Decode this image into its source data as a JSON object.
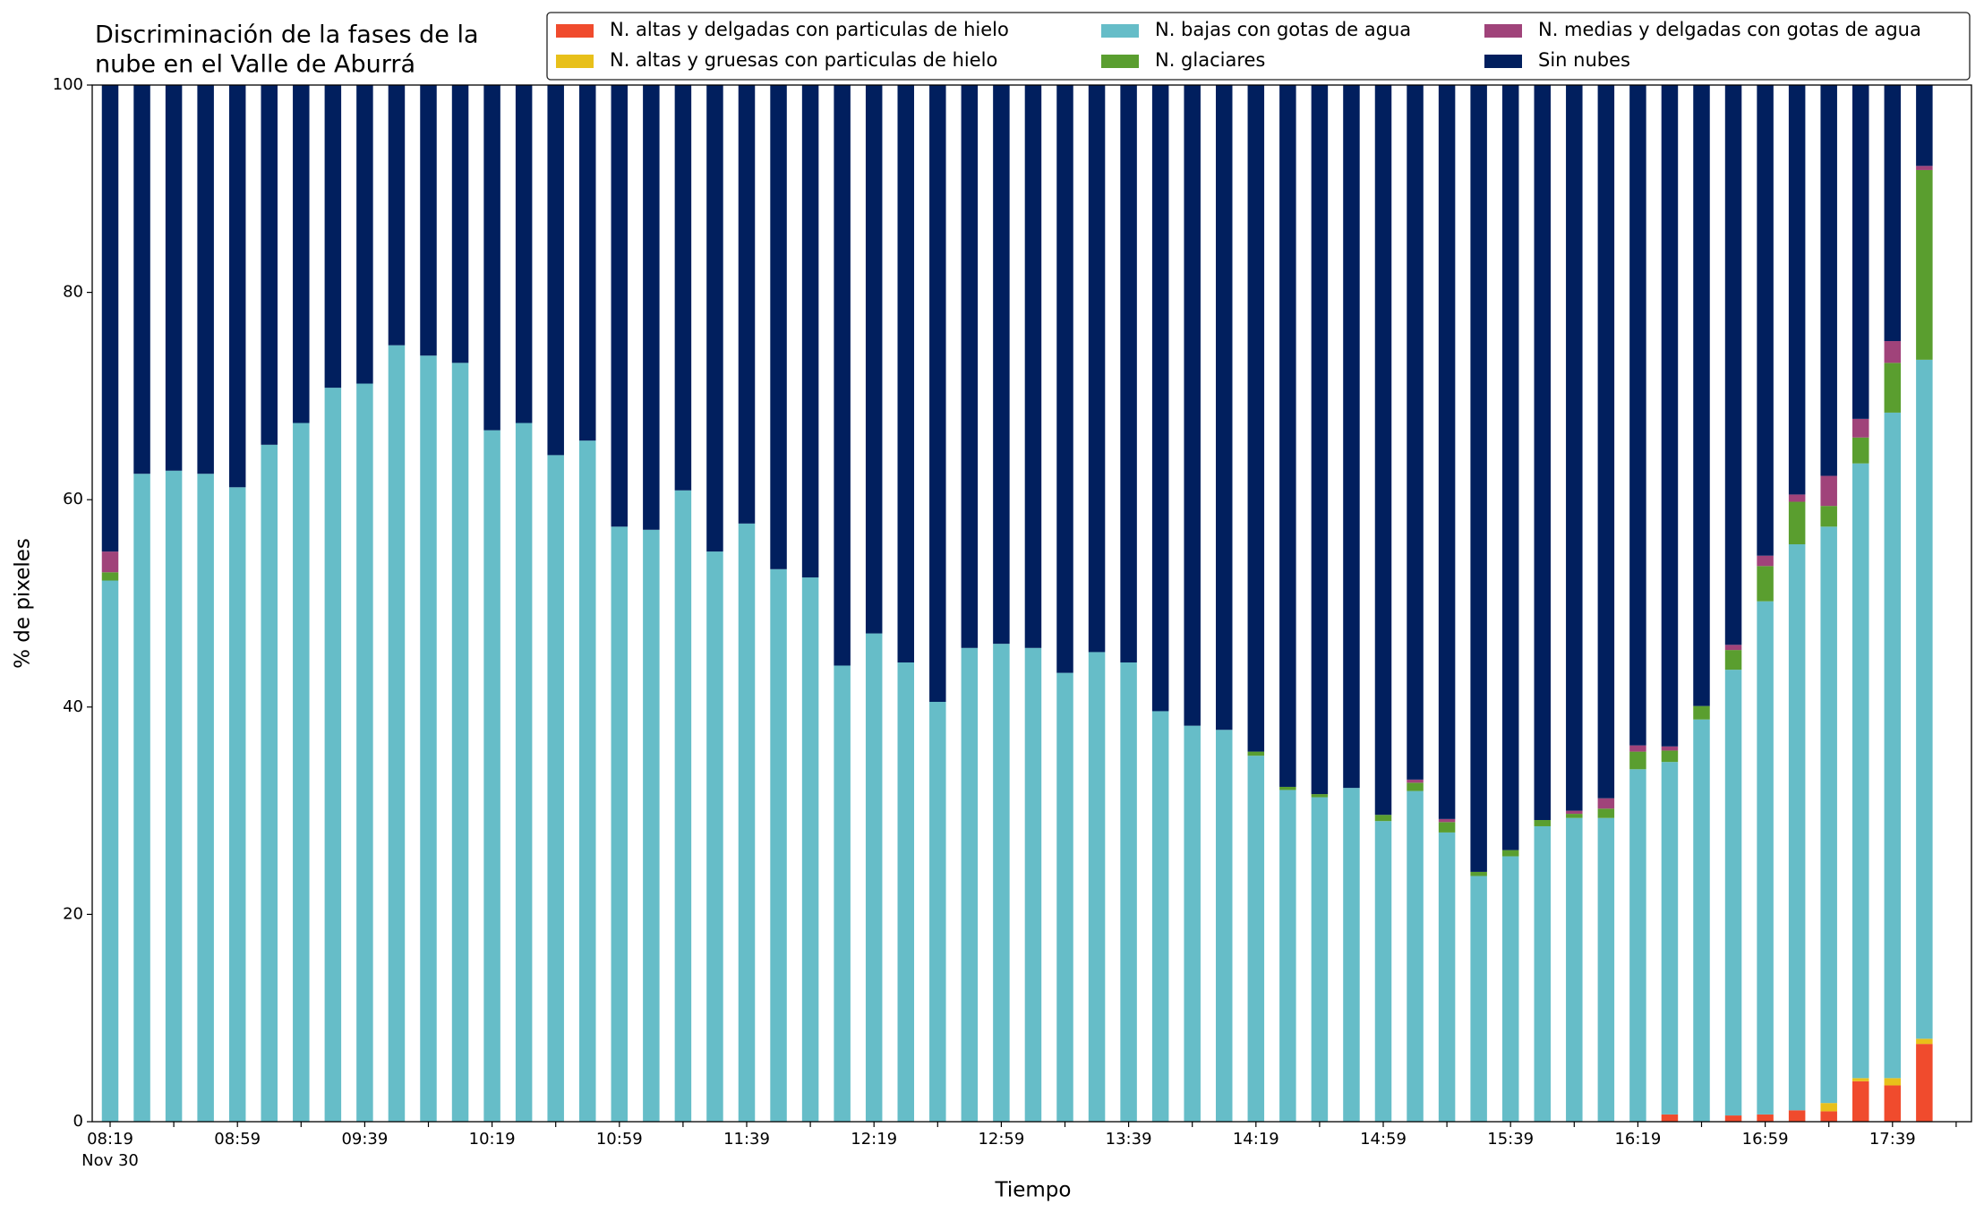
{
  "chart_data": {
    "type": "stacked_bar",
    "title": [
      "Discriminación de la fases de la",
      "nube en el Valle de Aburrá"
    ],
    "xlabel": "Tiempo",
    "ylabel": "% de pixeles",
    "x_date_label": "Nov 30",
    "categories": [
      "08:19",
      null,
      null,
      null,
      "08:59",
      null,
      null,
      null,
      "09:39",
      null,
      null,
      null,
      "10:19",
      null,
      null,
      null,
      "10:59",
      null,
      null,
      null,
      "11:39",
      null,
      null,
      null,
      "12:19",
      null,
      null,
      null,
      "12:59",
      null,
      null,
      null,
      "13:39",
      null,
      null,
      null,
      "14:19",
      null,
      null,
      null,
      "14:59",
      null,
      null,
      null,
      "15:39",
      null,
      null,
      null,
      "16:19",
      null,
      null,
      null,
      "16:59",
      null,
      null,
      null,
      "17:39",
      null
    ],
    "ylim": [
      0,
      100
    ],
    "yticks": [
      0,
      20,
      40,
      60,
      80,
      100
    ],
    "series": [
      {
        "name": "N. altas y delgadas con particulas de hielo",
        "color": "#f04b2d",
        "values": [
          0,
          0,
          0,
          0,
          0,
          0,
          0,
          0,
          0,
          0,
          0,
          0,
          0,
          0,
          0,
          0,
          0,
          0,
          0,
          0,
          0,
          0,
          0,
          0,
          0,
          0,
          0,
          0,
          0,
          0,
          0,
          0,
          0,
          0,
          0,
          0,
          0,
          0,
          0,
          0,
          0,
          0,
          0,
          0,
          0,
          0,
          0,
          0,
          0,
          0.7,
          0,
          0.6,
          0.7,
          1.1,
          1.0,
          3.9,
          3.5,
          7.5
        ]
      },
      {
        "name": "N. altas y gruesas con particulas de hielo",
        "color": "#e8c01a",
        "values": [
          0,
          0,
          0,
          0,
          0,
          0,
          0,
          0,
          0,
          0,
          0,
          0,
          0,
          0,
          0,
          0,
          0,
          0,
          0,
          0,
          0,
          0,
          0,
          0,
          0,
          0,
          0,
          0,
          0,
          0,
          0,
          0,
          0,
          0,
          0,
          0,
          0,
          0,
          0,
          0,
          0,
          0,
          0,
          0,
          0,
          0,
          0,
          0,
          0,
          0,
          0,
          0,
          0,
          0,
          0.8,
          0.3,
          0.7,
          0.5
        ]
      },
      {
        "name": "N. bajas con gotas de agua",
        "color": "#66bdc8",
        "values": [
          52.2,
          62.5,
          62.8,
          62.5,
          61.2,
          65.3,
          67.4,
          70.8,
          71.2,
          74.9,
          73.9,
          73.2,
          66.7,
          67.4,
          64.3,
          65.7,
          57.4,
          57.1,
          60.9,
          55.0,
          57.7,
          53.3,
          52.5,
          44.0,
          47.1,
          44.3,
          40.5,
          45.7,
          46.1,
          45.7,
          43.3,
          45.3,
          44.3,
          39.6,
          38.2,
          37.8,
          35.3,
          32.0,
          31.3,
          32.2,
          29.0,
          31.9,
          27.9,
          23.7,
          25.6,
          28.5,
          29.3,
          29.3,
          34.0,
          34.0,
          38.8,
          43.0,
          49.5,
          54.6,
          55.6,
          59.3,
          64.2,
          65.5
        ]
      },
      {
        "name": "N. glaciares",
        "color": "#5a9e2f",
        "values": [
          0.8,
          0,
          0,
          0,
          0,
          0,
          0,
          0,
          0,
          0,
          0,
          0,
          0,
          0,
          0,
          0,
          0,
          0,
          0,
          0,
          0,
          0,
          0,
          0,
          0,
          0,
          0,
          0,
          0,
          0,
          0,
          0,
          0,
          0,
          0,
          0,
          0.4,
          0.3,
          0.3,
          0,
          0.6,
          0.8,
          1.0,
          0.4,
          0.6,
          0.6,
          0.4,
          0.9,
          1.7,
          1.1,
          1.3,
          1.9,
          3.4,
          4.1,
          2.0,
          2.5,
          4.8,
          18.3
        ]
      },
      {
        "name": "N. medias y delgadas con gotas de agua",
        "color": "#a0437a",
        "values": [
          2.0,
          0,
          0,
          0,
          0,
          0,
          0,
          0,
          0,
          0,
          0,
          0,
          0,
          0,
          0,
          0,
          0,
          0,
          0,
          0,
          0,
          0,
          0,
          0,
          0,
          0,
          0,
          0,
          0,
          0,
          0,
          0,
          0,
          0,
          0,
          0,
          0,
          0,
          0,
          0,
          0,
          0.3,
          0.3,
          0,
          0,
          0,
          0.3,
          1.0,
          0.6,
          0.4,
          0,
          0.5,
          1.0,
          0.7,
          2.9,
          1.8,
          2.1,
          0.4
        ]
      },
      {
        "name": "Sin nubes",
        "color": "#011f5e",
        "values": [
          45.0,
          37.5,
          37.2,
          37.5,
          38.8,
          34.7,
          32.6,
          29.2,
          28.8,
          25.1,
          26.1,
          26.8,
          33.3,
          32.6,
          35.7,
          34.3,
          42.6,
          42.9,
          39.1,
          45.0,
          42.3,
          46.7,
          47.5,
          56.0,
          52.9,
          55.7,
          59.5,
          54.3,
          53.9,
          54.3,
          56.7,
          54.7,
          55.7,
          60.4,
          61.8,
          62.2,
          64.3,
          67.7,
          68.4,
          67.8,
          70.4,
          67.0,
          70.8,
          75.9,
          73.8,
          70.9,
          70.0,
          68.8,
          63.7,
          63.8,
          59.9,
          54.0,
          45.4,
          39.5,
          37.7,
          32.2,
          24.7,
          7.8
        ]
      }
    ]
  }
}
